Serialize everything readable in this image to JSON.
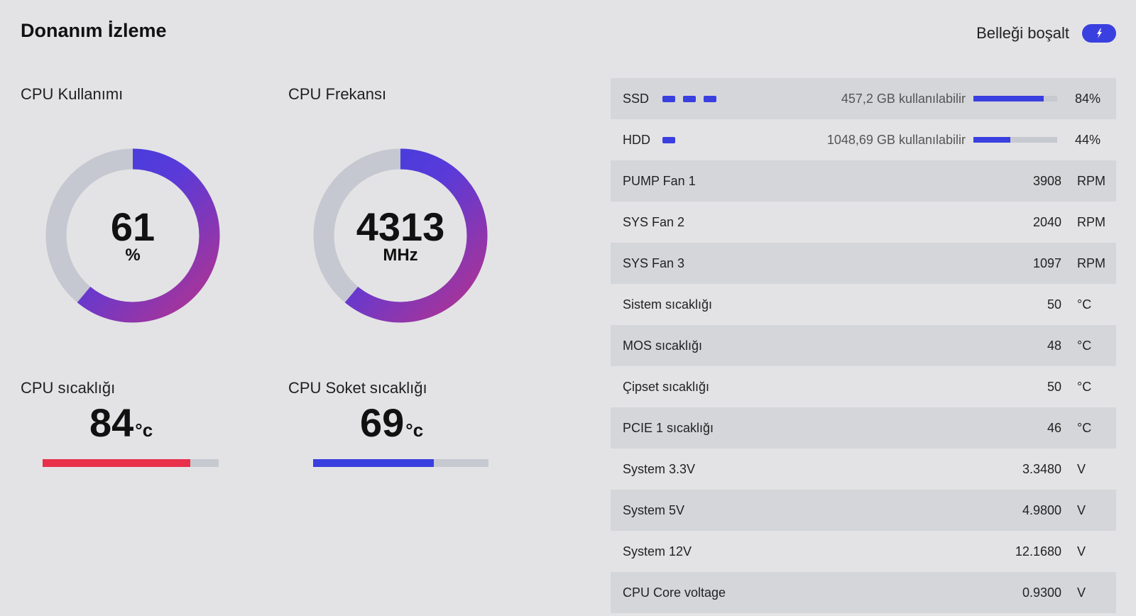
{
  "header": {
    "title": "Donanım İzleme",
    "release_memory_label": "Belleği boşalt",
    "accent_color": "#3a3fe0"
  },
  "cpu_usage": {
    "title": "CPU Kullanımı",
    "value": "61",
    "unit": "%",
    "fraction": 0.61
  },
  "cpu_frequency": {
    "title": "CPU Frekansı",
    "value": "4313",
    "unit": "MHz",
    "fraction": 0.61
  },
  "cpu_temp": {
    "title": "CPU sıcaklığı",
    "value": "84",
    "unit": "°c",
    "fraction": 0.84,
    "bar_color": "#e8304a"
  },
  "cpu_socket_temp": {
    "title": "CPU Soket sıcaklığı",
    "value": "69",
    "unit": "°c",
    "fraction": 0.69,
    "bar_color": "#3a3fe0"
  },
  "drives": [
    {
      "name": "SSD",
      "dots": 3,
      "available": "457,2 GB kullanılabilir",
      "percent_label": "84%",
      "fraction": 0.84
    },
    {
      "name": "HDD",
      "dots": 1,
      "available": "1048,69 GB kullanılabilir",
      "percent_label": "44%",
      "fraction": 0.44
    }
  ],
  "sensors": [
    {
      "label": "PUMP Fan 1",
      "value": "3908",
      "unit": "RPM"
    },
    {
      "label": "SYS Fan 2",
      "value": "2040",
      "unit": "RPM"
    },
    {
      "label": "SYS Fan 3",
      "value": "1097",
      "unit": "RPM"
    },
    {
      "label": "Sistem sıcaklığı",
      "value": "50",
      "unit": "°C"
    },
    {
      "label": "MOS sıcaklığı",
      "value": "48",
      "unit": "°C"
    },
    {
      "label": "Çipset sıcaklığı",
      "value": "50",
      "unit": "°C"
    },
    {
      "label": "PCIE 1 sıcaklığı",
      "value": "46",
      "unit": "°C"
    },
    {
      "label": "System 3.3V",
      "value": "3.3480",
      "unit": "V"
    },
    {
      "label": "System 5V",
      "value": "4.9800",
      "unit": "V"
    },
    {
      "label": "System 12V",
      "value": "12.1680",
      "unit": "V"
    },
    {
      "label": "CPU Core voltage",
      "value": "0.9300",
      "unit": "V"
    }
  ]
}
